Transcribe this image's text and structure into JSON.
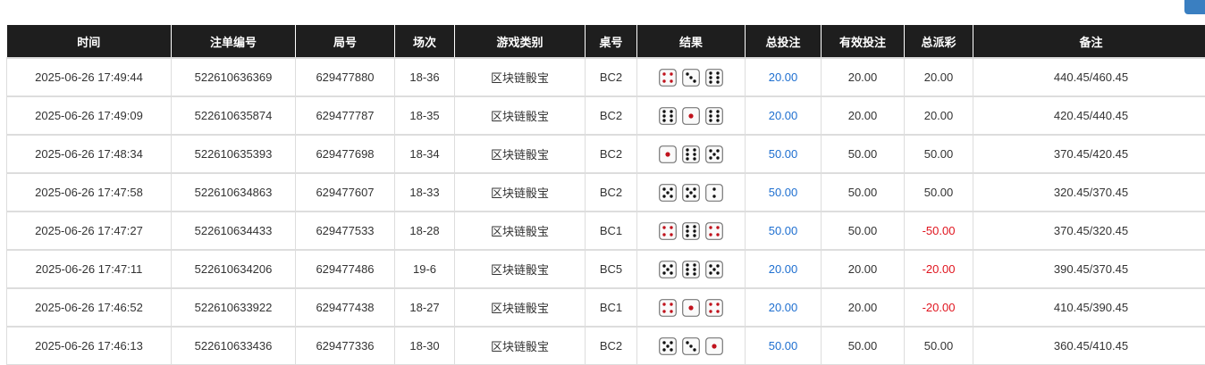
{
  "headers": [
    "时间",
    "注单编号",
    "局号",
    "场次",
    "游戏类别",
    "桌号",
    "结果",
    "总投注",
    "有效投注",
    "总派彩",
    "备注"
  ],
  "colors": {
    "header_bg": "#1e1e1e",
    "blue": "#1e6fd0",
    "red": "#e0141e",
    "button": "#3a7fc1"
  },
  "rows": [
    {
      "time": "2025-06-26 17:49:44",
      "bet_no": "522610636369",
      "round": "629477880",
      "session": "18-36",
      "game": "区块链骰宝",
      "table": "BC2",
      "dice": [
        4,
        3,
        6
      ],
      "total_bet": "20.00",
      "valid_bet": "20.00",
      "payout": "20.00",
      "note": "440.45/460.45"
    },
    {
      "time": "2025-06-26 17:49:09",
      "bet_no": "522610635874",
      "round": "629477787",
      "session": "18-35",
      "game": "区块链骰宝",
      "table": "BC2",
      "dice": [
        6,
        1,
        6
      ],
      "total_bet": "20.00",
      "valid_bet": "20.00",
      "payout": "20.00",
      "note": "420.45/440.45"
    },
    {
      "time": "2025-06-26 17:48:34",
      "bet_no": "522610635393",
      "round": "629477698",
      "session": "18-34",
      "game": "区块链骰宝",
      "table": "BC2",
      "dice": [
        1,
        6,
        5
      ],
      "total_bet": "50.00",
      "valid_bet": "50.00",
      "payout": "50.00",
      "note": "370.45/420.45"
    },
    {
      "time": "2025-06-26 17:47:58",
      "bet_no": "522610634863",
      "round": "629477607",
      "session": "18-33",
      "game": "区块链骰宝",
      "table": "BC2",
      "dice": [
        5,
        5,
        2
      ],
      "total_bet": "50.00",
      "valid_bet": "50.00",
      "payout": "50.00",
      "note": "320.45/370.45"
    },
    {
      "time": "2025-06-26 17:47:27",
      "bet_no": "522610634433",
      "round": "629477533",
      "session": "18-28",
      "game": "区块链骰宝",
      "table": "BC1",
      "dice": [
        4,
        6,
        4
      ],
      "total_bet": "50.00",
      "valid_bet": "50.00",
      "payout": "-50.00",
      "note": "370.45/320.45"
    },
    {
      "time": "2025-06-26 17:47:11",
      "bet_no": "522610634206",
      "round": "629477486",
      "session": "19-6",
      "game": "区块链骰宝",
      "table": "BC5",
      "dice": [
        5,
        6,
        5
      ],
      "total_bet": "20.00",
      "valid_bet": "20.00",
      "payout": "-20.00",
      "note": "390.45/370.45"
    },
    {
      "time": "2025-06-26 17:46:52",
      "bet_no": "522610633922",
      "round": "629477438",
      "session": "18-27",
      "game": "区块链骰宝",
      "table": "BC1",
      "dice": [
        4,
        1,
        4
      ],
      "total_bet": "20.00",
      "valid_bet": "20.00",
      "payout": "-20.00",
      "note": "410.45/390.45"
    },
    {
      "time": "2025-06-26 17:46:13",
      "bet_no": "522610633436",
      "round": "629477336",
      "session": "18-30",
      "game": "区块链骰宝",
      "table": "BC2",
      "dice": [
        5,
        3,
        1
      ],
      "total_bet": "50.00",
      "valid_bet": "50.00",
      "payout": "50.00",
      "note": "360.45/410.45"
    }
  ]
}
